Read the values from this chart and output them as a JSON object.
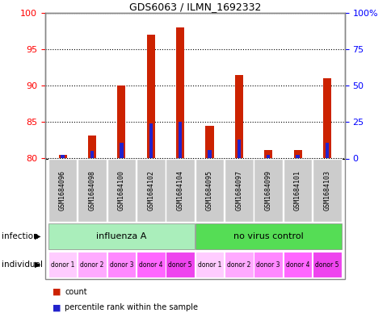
{
  "title": "GDS6063 / ILMN_1692332",
  "samples": [
    "GSM1684096",
    "GSM1684098",
    "GSM1684100",
    "GSM1684102",
    "GSM1684104",
    "GSM1684095",
    "GSM1684097",
    "GSM1684099",
    "GSM1684101",
    "GSM1684103"
  ],
  "red_values": [
    80.5,
    83.2,
    90.0,
    97.0,
    98.0,
    84.5,
    91.5,
    81.2,
    81.2,
    91.0
  ],
  "blue_values": [
    80.5,
    81.0,
    82.2,
    84.8,
    85.0,
    81.2,
    82.6,
    80.5,
    80.5,
    82.2
  ],
  "ylim_left": [
    80,
    100
  ],
  "yticks_left": [
    80,
    85,
    90,
    95,
    100
  ],
  "ytick_labels_right": [
    "0",
    "25",
    "50",
    "75",
    "100%"
  ],
  "infection_labels": [
    "influenza A",
    "no virus control"
  ],
  "infection_colors": [
    "#aaeebb",
    "#55dd55"
  ],
  "individual_labels": [
    "donor 1",
    "donor 2",
    "donor 3",
    "donor 4",
    "donor 5",
    "donor 1",
    "donor 2",
    "donor 3",
    "donor 4",
    "donor 5"
  ],
  "individual_colors": [
    "#ffccff",
    "#ffaaff",
    "#ff88ff",
    "#ff66ff",
    "#ee44ee",
    "#ffccff",
    "#ffaaff",
    "#ff88ff",
    "#ff66ff",
    "#ee44ee"
  ],
  "red_color": "#cc2200",
  "blue_color": "#2222cc",
  "label_bg": "#cccccc",
  "inf_color_a": "#aaeebb",
  "inf_color_b": "#55dd55",
  "base_value": 80
}
